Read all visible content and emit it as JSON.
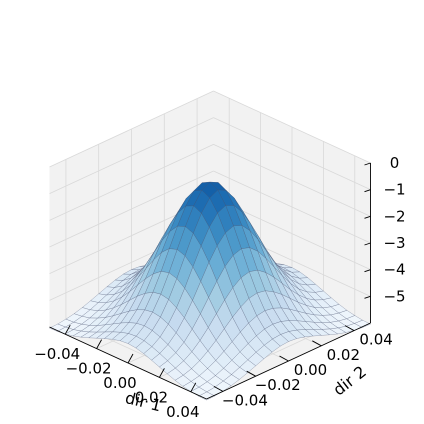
{
  "chart_data": {
    "type": "surface",
    "title": "",
    "xlabel": "dir 1",
    "ylabel": "dir 2",
    "zlabel": "",
    "xlim": [
      -0.05,
      0.05
    ],
    "ylim": [
      -0.05,
      0.05
    ],
    "zlim": [
      -6,
      0
    ],
    "grid": true,
    "colormap": "Blues",
    "x_ticks": [
      "−0.04",
      "−0.02",
      "0.00",
      "0.02",
      "0.04"
    ],
    "y_ticks": [
      "−0.04",
      "−0.02",
      "0.00",
      "0.02",
      "0.04"
    ],
    "z_ticks": [
      "0",
      "−1",
      "−2",
      "−3",
      "−4",
      "−5"
    ],
    "x_tick_values": [
      -0.04,
      -0.02,
      0.0,
      0.02,
      0.04
    ],
    "y_tick_values": [
      -0.04,
      -0.02,
      0.0,
      0.02,
      0.04
    ],
    "z_tick_values": [
      0,
      -1,
      -2,
      -3,
      -4,
      -5
    ],
    "x": [
      -0.05,
      -0.045,
      -0.04,
      -0.035,
      -0.03,
      -0.025,
      -0.02,
      -0.015,
      -0.01,
      -0.005,
      0.0,
      0.005,
      0.01,
      0.015,
      0.02,
      0.025,
      0.03,
      0.035,
      0.04,
      0.045,
      0.05
    ],
    "y": [
      -0.05,
      -0.045,
      -0.04,
      -0.035,
      -0.03,
      -0.025,
      -0.02,
      -0.015,
      -0.01,
      -0.005,
      0.0,
      0.005,
      0.01,
      0.015,
      0.02,
      0.025,
      0.03,
      0.035,
      0.04,
      0.045,
      0.05
    ],
    "z": [
      [
        -6.04,
        -6.03,
        -5.99,
        -5.93,
        -5.84,
        -5.73,
        -5.61,
        -5.49,
        -5.38,
        -5.3,
        -5.27,
        -5.3,
        -5.38,
        -5.49,
        -5.61,
        -5.73,
        -5.84,
        -5.93,
        -5.99,
        -6.03,
        -6.04
      ],
      [
        -6.03,
        -6.01,
        -5.97,
        -5.89,
        -5.79,
        -5.66,
        -5.52,
        -5.38,
        -5.26,
        -5.17,
        -5.14,
        -5.17,
        -5.26,
        -5.38,
        -5.52,
        -5.66,
        -5.79,
        -5.89,
        -5.97,
        -6.01,
        -6.03
      ],
      [
        -5.99,
        -5.97,
        -5.91,
        -5.82,
        -5.69,
        -5.53,
        -5.36,
        -5.19,
        -5.04,
        -4.93,
        -4.89,
        -4.93,
        -5.04,
        -5.19,
        -5.36,
        -5.53,
        -5.69,
        -5.82,
        -5.91,
        -5.97,
        -5.99
      ],
      [
        -5.93,
        -5.89,
        -5.82,
        -5.69,
        -5.53,
        -5.33,
        -5.11,
        -4.89,
        -4.7,
        -4.57,
        -4.52,
        -4.57,
        -4.7,
        -4.89,
        -5.11,
        -5.33,
        -5.53,
        -5.69,
        -5.82,
        -5.89,
        -5.93
      ],
      [
        -5.84,
        -5.79,
        -5.69,
        -5.53,
        -5.31,
        -5.05,
        -4.76,
        -4.47,
        -4.23,
        -4.05,
        -3.99,
        -4.05,
        -4.23,
        -4.47,
        -4.76,
        -5.05,
        -5.31,
        -5.53,
        -5.69,
        -5.79,
        -5.84
      ],
      [
        -5.73,
        -5.66,
        -5.53,
        -5.33,
        -5.05,
        -4.71,
        -4.33,
        -3.96,
        -3.64,
        -3.41,
        -3.33,
        -3.41,
        -3.64,
        -3.96,
        -4.33,
        -4.71,
        -5.05,
        -5.33,
        -5.53,
        -5.66,
        -5.73
      ],
      [
        -5.61,
        -5.52,
        -5.36,
        -5.11,
        -4.76,
        -4.33,
        -3.86,
        -3.39,
        -2.98,
        -2.7,
        -2.6,
        -2.7,
        -2.98,
        -3.39,
        -3.86,
        -4.33,
        -4.76,
        -5.11,
        -5.36,
        -5.52,
        -5.61
      ],
      [
        -5.49,
        -5.38,
        -5.19,
        -4.89,
        -4.47,
        -3.96,
        -3.39,
        -2.82,
        -2.34,
        -2.0,
        -1.88,
        -2.0,
        -2.34,
        -2.82,
        -3.39,
        -3.96,
        -4.47,
        -4.89,
        -5.19,
        -5.38,
        -5.49
      ],
      [
        -5.38,
        -5.26,
        -5.04,
        -4.7,
        -4.23,
        -3.64,
        -2.98,
        -2.34,
        -1.78,
        -1.39,
        -1.25,
        -1.39,
        -1.78,
        -2.34,
        -2.98,
        -3.64,
        -4.23,
        -4.7,
        -5.04,
        -5.26,
        -5.38
      ],
      [
        -5.3,
        -5.17,
        -4.93,
        -4.57,
        -4.05,
        -3.41,
        -2.7,
        -2.0,
        -1.39,
        -0.96,
        -0.8,
        -0.96,
        -1.39,
        -2.0,
        -2.7,
        -3.41,
        -4.05,
        -4.57,
        -4.93,
        -5.17,
        -5.3
      ],
      [
        -5.27,
        -5.14,
        -4.89,
        -4.52,
        -3.99,
        -3.33,
        -2.6,
        -1.88,
        -1.25,
        -0.8,
        -0.64,
        -0.8,
        -1.25,
        -1.88,
        -2.6,
        -3.33,
        -3.99,
        -4.52,
        -4.89,
        -5.14,
        -5.27
      ],
      [
        -5.3,
        -5.17,
        -4.93,
        -4.57,
        -4.05,
        -3.41,
        -2.7,
        -2.0,
        -1.39,
        -0.96,
        -0.8,
        -0.96,
        -1.39,
        -2.0,
        -2.7,
        -3.41,
        -4.05,
        -4.57,
        -4.93,
        -5.17,
        -5.3
      ],
      [
        -5.38,
        -5.26,
        -5.04,
        -4.7,
        -4.23,
        -3.64,
        -2.98,
        -2.34,
        -1.78,
        -1.39,
        -1.25,
        -1.39,
        -1.78,
        -2.34,
        -2.98,
        -3.64,
        -4.23,
        -4.7,
        -5.04,
        -5.26,
        -5.38
      ],
      [
        -5.49,
        -5.38,
        -5.19,
        -4.89,
        -4.47,
        -3.96,
        -3.39,
        -2.82,
        -2.34,
        -2.0,
        -1.88,
        -2.0,
        -2.34,
        -2.82,
        -3.39,
        -3.96,
        -4.47,
        -4.89,
        -5.19,
        -5.38,
        -5.49
      ],
      [
        -5.61,
        -5.52,
        -5.36,
        -5.11,
        -4.76,
        -4.33,
        -3.86,
        -3.39,
        -2.98,
        -2.7,
        -2.6,
        -2.7,
        -2.98,
        -3.39,
        -3.86,
        -4.33,
        -4.76,
        -5.11,
        -5.36,
        -5.52,
        -5.61
      ],
      [
        -5.73,
        -5.66,
        -5.53,
        -5.33,
        -5.05,
        -4.71,
        -4.33,
        -3.96,
        -3.64,
        -3.41,
        -3.33,
        -3.41,
        -3.64,
        -3.96,
        -4.33,
        -4.71,
        -5.05,
        -5.33,
        -5.53,
        -5.66,
        -5.73
      ],
      [
        -5.84,
        -5.79,
        -5.69,
        -5.53,
        -5.31,
        -5.05,
        -4.76,
        -4.47,
        -4.23,
        -4.05,
        -3.99,
        -4.05,
        -4.23,
        -4.47,
        -4.76,
        -5.05,
        -5.31,
        -5.53,
        -5.69,
        -5.79,
        -5.84
      ],
      [
        -5.93,
        -5.89,
        -5.82,
        -5.69,
        -5.53,
        -5.33,
        -5.11,
        -4.89,
        -4.7,
        -4.57,
        -4.52,
        -4.57,
        -4.7,
        -4.89,
        -5.11,
        -5.33,
        -5.53,
        -5.69,
        -5.82,
        -5.89,
        -5.93
      ],
      [
        -5.99,
        -5.97,
        -5.91,
        -5.82,
        -5.69,
        -5.53,
        -5.36,
        -5.19,
        -5.04,
        -4.93,
        -4.89,
        -4.93,
        -5.04,
        -5.19,
        -5.36,
        -5.53,
        -5.69,
        -5.82,
        -5.91,
        -5.97,
        -5.99
      ],
      [
        -6.03,
        -6.01,
        -5.97,
        -5.89,
        -5.79,
        -5.66,
        -5.52,
        -5.38,
        -5.26,
        -5.17,
        -5.14,
        -5.17,
        -5.26,
        -5.38,
        -5.52,
        -5.66,
        -5.79,
        -5.89,
        -5.97,
        -6.01,
        -6.03
      ],
      [
        -6.04,
        -6.03,
        -5.99,
        -5.93,
        -5.84,
        -5.73,
        -5.61,
        -5.49,
        -5.38,
        -5.3,
        -5.27,
        -5.3,
        -5.38,
        -5.49,
        -5.61,
        -5.73,
        -5.84,
        -5.93,
        -5.99,
        -6.03,
        -6.04
      ]
    ]
  }
}
